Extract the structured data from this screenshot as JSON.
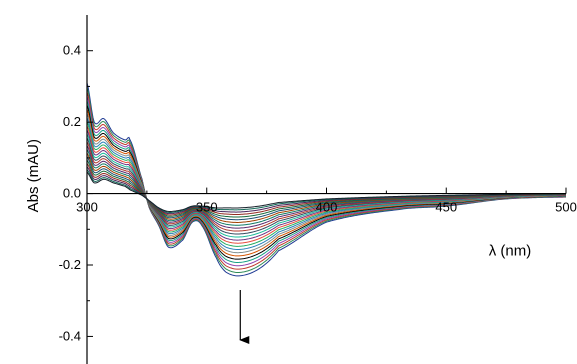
{
  "chart_data": {
    "type": "line",
    "title": "",
    "xlabel": "λ (nm)",
    "ylabel": "Abs (mAU)",
    "xlim": [
      300,
      500
    ],
    "ylim": [
      -0.48,
      0.5
    ],
    "x_ticks": [
      {
        "value": 300,
        "label": "300"
      },
      {
        "value": 350,
        "label": "350"
      },
      {
        "value": 400,
        "label": "400"
      },
      {
        "value": 450,
        "label": "450"
      },
      {
        "value": 500,
        "label": "500"
      }
    ],
    "y_ticks": [
      {
        "value": 0.4,
        "label": "0.4"
      },
      {
        "value": 0.2,
        "label": "0.2"
      },
      {
        "value": 0.0,
        "label": "0.0"
      },
      {
        "value": -0.2,
        "label": "-0.2"
      },
      {
        "value": -0.4,
        "label": "-0.4"
      }
    ],
    "grid": false,
    "legend": "none",
    "annotations": [
      {
        "type": "arrow",
        "direction": "down",
        "x": 364,
        "y_from": -0.27,
        "y_to": -0.41
      }
    ],
    "key_points_x": [
      300,
      303,
      307,
      311,
      316,
      318,
      323,
      326,
      330,
      334,
      340,
      344,
      348,
      354,
      358,
      364,
      372,
      380,
      400,
      430,
      450,
      475,
      500
    ],
    "envelope_start": [
      0.31,
      0.2,
      0.21,
      0.17,
      0.15,
      0.15,
      0.04,
      -0.04,
      -0.09,
      -0.15,
      -0.13,
      -0.08,
      -0.09,
      -0.18,
      -0.22,
      -0.23,
      -0.21,
      -0.16,
      -0.08,
      -0.045,
      -0.035,
      -0.015,
      -0.01
    ],
    "envelope_end": [
      0.06,
      0.03,
      0.04,
      0.03,
      0.02,
      0.01,
      -0.005,
      -0.02,
      -0.04,
      -0.05,
      -0.045,
      -0.035,
      -0.035,
      -0.04,
      -0.04,
      -0.04,
      -0.035,
      -0.025,
      -0.015,
      -0.008,
      -0.005,
      -0.002,
      0.0
    ],
    "series_count": 24,
    "series_colors": [
      "#1f3a93",
      "#2e8b57",
      "#c0392b",
      "#8e44ad",
      "#16a085",
      "#000000",
      "#d35400",
      "#7f8c8d",
      "#2980b9",
      "#27ae60",
      "#e74c3c",
      "#6c3483",
      "#1abc9c",
      "#34495e",
      "#b03a2e",
      "#5b2c6f",
      "#117a65",
      "#a04000",
      "#1b4f72",
      "#186a3b",
      "#922b21",
      "#4a235a",
      "#0e6655",
      "#17202a"
    ]
  }
}
